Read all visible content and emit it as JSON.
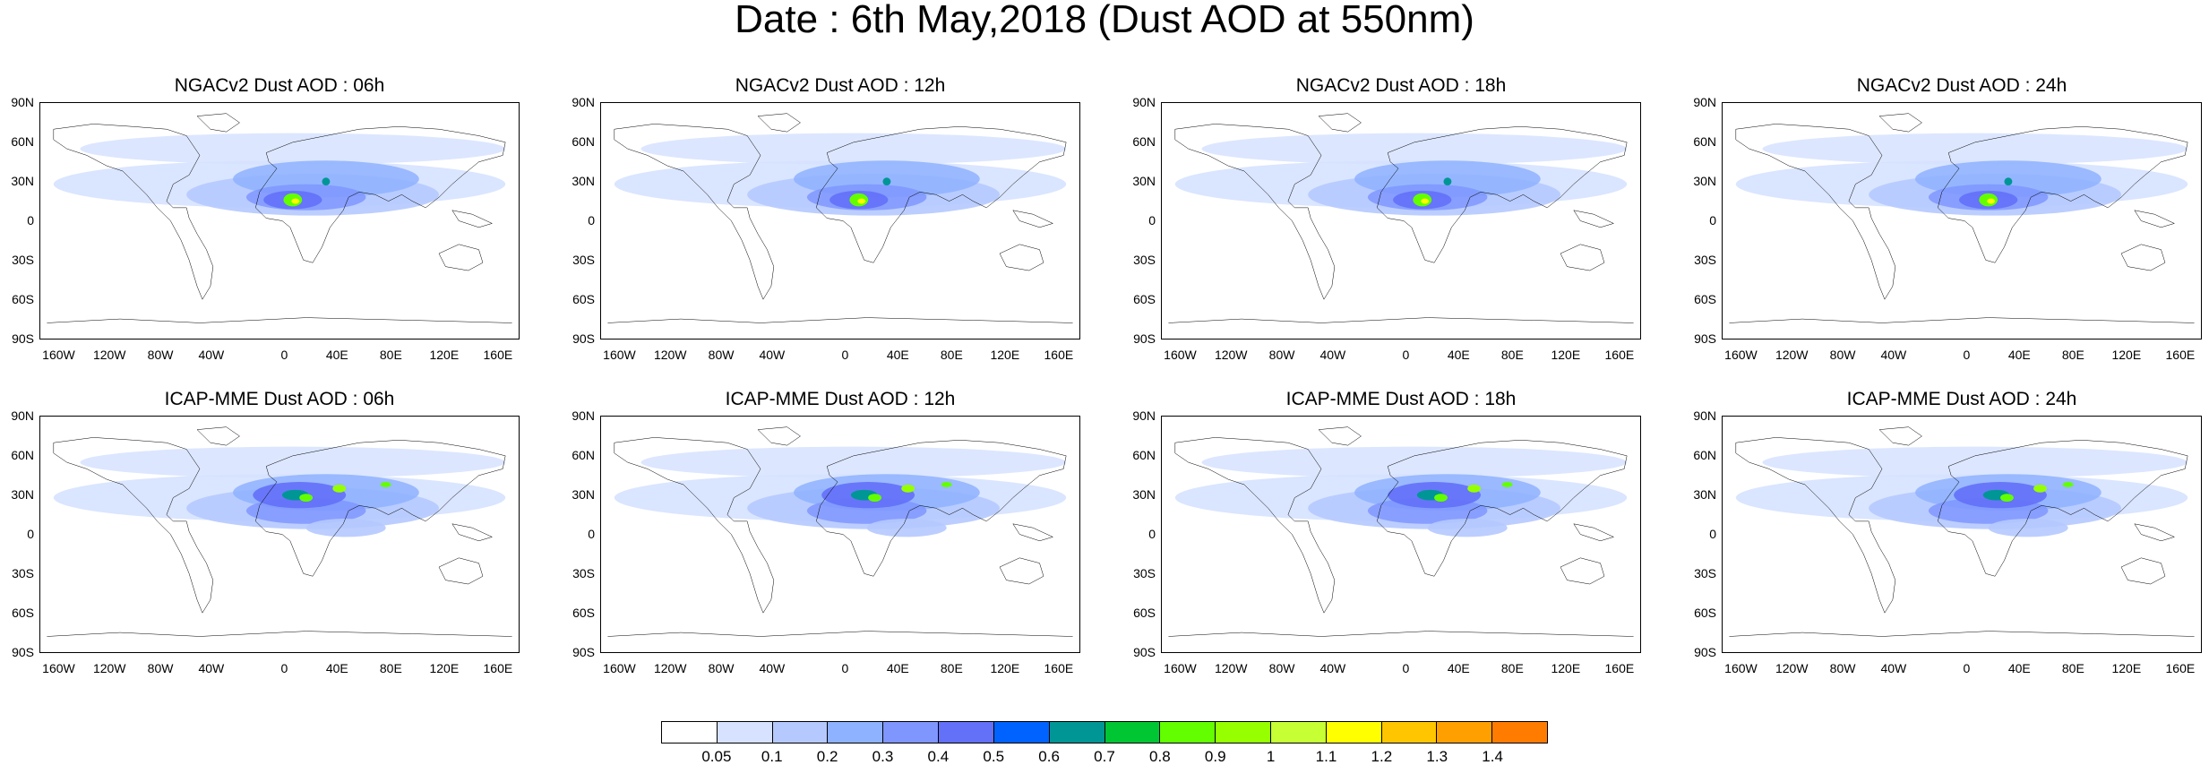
{
  "title": "Date : 6th May,2018 (Dust AOD at 550nm)",
  "lat_labels": [
    "90N",
    "60N",
    "30N",
    "0",
    "30S",
    "60S",
    "90S"
  ],
  "lon_labels": [
    "160W",
    "120W",
    "80W",
    "40W",
    "0",
    "40E",
    "80E",
    "120E",
    "160E"
  ],
  "panels": [
    {
      "title": "NGACv2 Dust AOD : 06h",
      "model": "NGACv2",
      "hour": "06h"
    },
    {
      "title": "NGACv2 Dust AOD : 12h",
      "model": "NGACv2",
      "hour": "12h"
    },
    {
      "title": "NGACv2 Dust AOD : 18h",
      "model": "NGACv2",
      "hour": "18h"
    },
    {
      "title": "NGACv2 Dust AOD : 24h",
      "model": "NGACv2",
      "hour": "24h"
    },
    {
      "title": "ICAP-MME Dust AOD : 06h",
      "model": "ICAP-MME",
      "hour": "06h"
    },
    {
      "title": "ICAP-MME Dust AOD : 12h",
      "model": "ICAP-MME",
      "hour": "12h"
    },
    {
      "title": "ICAP-MME Dust AOD : 18h",
      "model": "ICAP-MME",
      "hour": "18h"
    },
    {
      "title": "ICAP-MME Dust AOD : 24h",
      "model": "ICAP-MME",
      "hour": "24h"
    }
  ],
  "colorbar": {
    "labels": [
      "0.05",
      "0.1",
      "0.2",
      "0.3",
      "0.4",
      "0.5",
      "0.6",
      "0.7",
      "0.8",
      "0.9",
      "1",
      "1.1",
      "1.2",
      "1.3",
      "1.4"
    ],
    "colors": [
      "#ffffff",
      "#d6e2ff",
      "#b5c9ff",
      "#8eb2ff",
      "#7f96ff",
      "#6370f8",
      "#0063ff",
      "#009696",
      "#00c633",
      "#63ff00",
      "#96ff00",
      "#c6ff33",
      "#ffff00",
      "#ffc600",
      "#ffa000",
      "#ff7c00",
      "#ff1900"
    ]
  }
}
